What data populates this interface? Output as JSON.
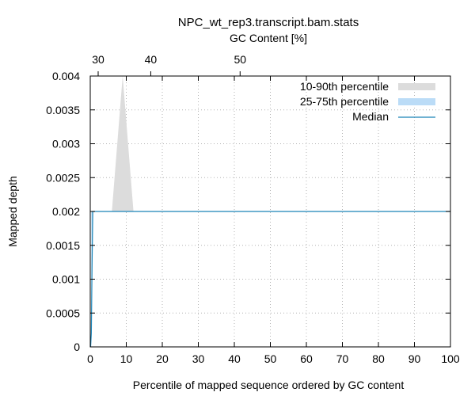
{
  "chart_data": {
    "type": "area",
    "title": "NPC_wt_rep3.transcript.bam.stats",
    "top_axis_label": "GC Content [%]",
    "xlabel": "Percentile of mapped sequence ordered by GC content",
    "ylabel": "Mapped depth",
    "xlim": [
      0,
      100
    ],
    "ylim": [
      0,
      0.004
    ],
    "x_ticks": [
      0,
      10,
      20,
      30,
      40,
      50,
      60,
      70,
      80,
      90,
      100
    ],
    "x_tick_labels": [
      "0",
      "10",
      "20",
      "30",
      "40",
      "50",
      "60",
      "70",
      "80",
      "90",
      "100"
    ],
    "y_ticks": [
      0,
      0.0005,
      0.001,
      0.0015,
      0.002,
      0.0025,
      0.003,
      0.0035,
      0.004
    ],
    "y_tick_labels": [
      "0",
      "0.0005",
      "0.001",
      "0.0015",
      "0.002",
      "0.0025",
      "0.003",
      "0.0035",
      "0.004"
    ],
    "top_ticks": [
      {
        "x": 2.2,
        "label": "30"
      },
      {
        "x": 16.8,
        "label": "40"
      },
      {
        "x": 41.6,
        "label": "50"
      }
    ],
    "grid": true,
    "legend_position": "top-right",
    "series": [
      {
        "name": "10-90th percentile",
        "kind": "band",
        "color": "#dcdcdc",
        "x": [
          0.3,
          0.7,
          6.0,
          9.0,
          12.0,
          100
        ],
        "low": [
          0,
          0.002,
          0.002,
          0.002,
          0.002,
          0.002
        ],
        "high": [
          0.002,
          0.002,
          0.002,
          0.004,
          0.002,
          0.002
        ]
      },
      {
        "name": "25-75th percentile",
        "kind": "band",
        "color": "#bbdcf7",
        "x": [
          0.3,
          0.7,
          100
        ],
        "low": [
          0,
          0.002,
          0.002
        ],
        "high": [
          0.002,
          0.002,
          0.002
        ]
      },
      {
        "name": "Median",
        "kind": "line",
        "color": "#1a84b8",
        "x": [
          0.1,
          0.3,
          0.5,
          0.7,
          100
        ],
        "y": [
          0,
          0.0002,
          0.0012,
          0.002,
          0.002
        ]
      }
    ]
  }
}
